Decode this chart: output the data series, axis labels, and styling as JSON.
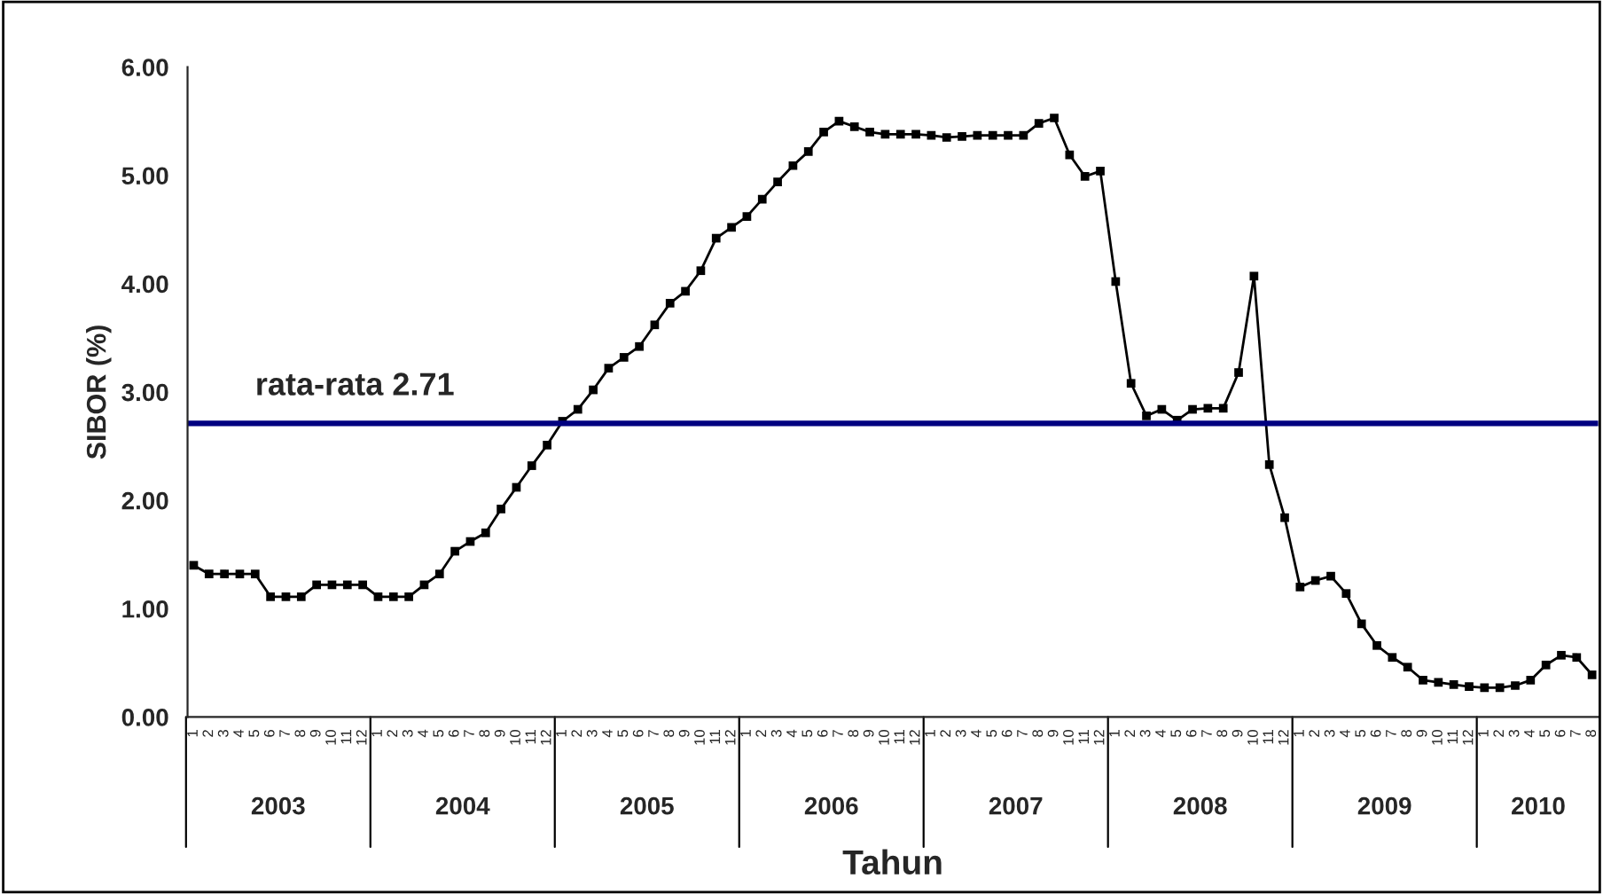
{
  "chart_data": {
    "type": "line",
    "xlabel": "Tahun",
    "ylabel": "SIBOR (%)",
    "categories": [
      "1",
      "2",
      "3",
      "4",
      "5",
      "6",
      "7",
      "8",
      "9",
      "10",
      "11",
      "12",
      "1",
      "2",
      "3",
      "4",
      "5",
      "6",
      "7",
      "8",
      "9",
      "10",
      "11",
      "12",
      "1",
      "2",
      "3",
      "4",
      "5",
      "6",
      "7",
      "8",
      "9",
      "10",
      "11",
      "12",
      "1",
      "2",
      "3",
      "4",
      "5",
      "6",
      "7",
      "8",
      "9",
      "10",
      "11",
      "12",
      "1",
      "2",
      "3",
      "4",
      "5",
      "6",
      "7",
      "8",
      "9",
      "10",
      "11",
      "12",
      "1",
      "2",
      "3",
      "4",
      "5",
      "6",
      "7",
      "8",
      "9",
      "10",
      "11",
      "12",
      "1",
      "2",
      "3",
      "4",
      "5",
      "6",
      "7",
      "8",
      "9",
      "10",
      "11",
      "12",
      "1",
      "2",
      "3",
      "4",
      "5",
      "6",
      "7",
      "8"
    ],
    "series": [
      {
        "color": "#000000",
        "values": [
          1.4,
          1.32,
          1.32,
          1.32,
          1.32,
          1.11,
          1.11,
          1.11,
          1.22,
          1.22,
          1.22,
          1.22,
          1.11,
          1.11,
          1.11,
          1.22,
          1.32,
          1.53,
          1.62,
          1.7,
          1.92,
          2.12,
          2.32,
          2.51,
          2.73,
          2.84,
          3.02,
          3.22,
          3.32,
          3.42,
          3.62,
          3.82,
          3.93,
          4.12,
          4.42,
          4.52,
          4.62,
          4.78,
          4.94,
          5.09,
          5.22,
          5.4,
          5.5,
          5.45,
          5.4,
          5.38,
          5.38,
          5.38,
          5.37,
          5.35,
          5.36,
          5.37,
          5.37,
          5.37,
          5.37,
          5.48,
          5.53,
          5.19,
          4.99,
          5.04,
          4.02,
          3.08,
          2.78,
          2.84,
          2.74,
          2.84,
          2.85,
          2.85,
          3.18,
          4.07,
          2.33,
          1.84,
          1.2,
          1.26,
          1.3,
          1.14,
          0.86,
          0.66,
          0.55,
          0.46,
          0.34,
          0.32,
          0.3,
          0.28,
          0.27,
          0.27,
          0.29,
          0.34,
          0.48,
          0.57,
          0.55,
          0.39
        ]
      }
    ],
    "ylim": [
      0,
      6
    ],
    "yticks": [
      {
        "value": 0,
        "label": "0.00"
      },
      {
        "value": 1,
        "label": "1.00"
      },
      {
        "value": 2,
        "label": "2.00"
      },
      {
        "value": 3,
        "label": "3.00"
      },
      {
        "value": 4,
        "label": "4.00"
      },
      {
        "value": 5,
        "label": "5.00"
      },
      {
        "value": 6,
        "label": "6.00"
      }
    ],
    "ref_lines": [
      {
        "axis": "y",
        "value": 2.71,
        "label": "rata-rata 2.71",
        "color": "#000080"
      }
    ],
    "annotations": [
      "2003",
      "2004",
      "2005",
      "2006",
      "2007",
      "2008",
      "2009",
      "2010"
    ],
    "marker": "square",
    "line_style": "solid",
    "grid": false,
    "legend": false
  }
}
